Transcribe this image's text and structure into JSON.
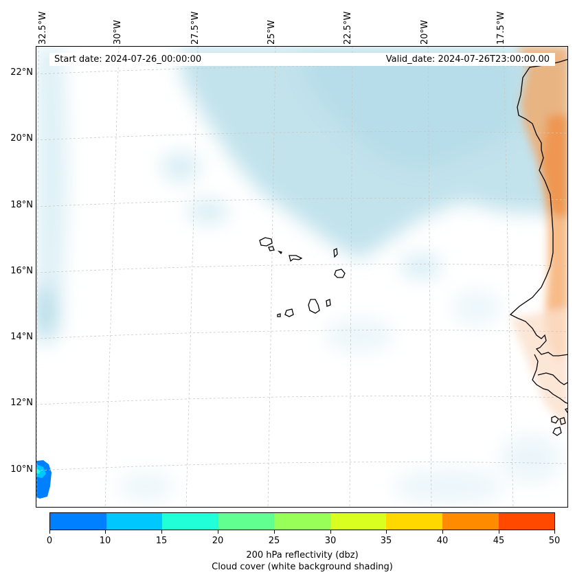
{
  "header": {
    "start_date": "Start date: 2024-07-26_00:00:00",
    "valid_date": "Valid_date: 2024-07-26T23:00:00.00"
  },
  "longitude_labels": [
    "32.5°W",
    "30°W",
    "27.5°W",
    "25°W",
    "22.5°W",
    "20°W",
    "17.5°W"
  ],
  "latitude_labels": [
    "22°N",
    "20°N",
    "18°N",
    "16°N",
    "14°N",
    "12°N",
    "10°N"
  ],
  "colorbar": {
    "ticks": [
      "0",
      "10",
      "15",
      "20",
      "25",
      "30",
      "35",
      "40",
      "45",
      "50"
    ],
    "colors": [
      "#0080ff",
      "#00c8ff",
      "#20ffd8",
      "#60ff90",
      "#98ff58",
      "#d8ff20",
      "#ffd800",
      "#ff8c00",
      "#ff4800"
    ],
    "label": "200 hPa reflectivity (dbz)",
    "sublabel": "Cloud cover (white background shading)"
  },
  "fields": {
    "cloud_color": "#add8e6",
    "land_color": "#f4a460",
    "reflectivity_color": "#0080ff",
    "coastline_color": "#000000",
    "grid_color": "#c8c8c8"
  }
}
